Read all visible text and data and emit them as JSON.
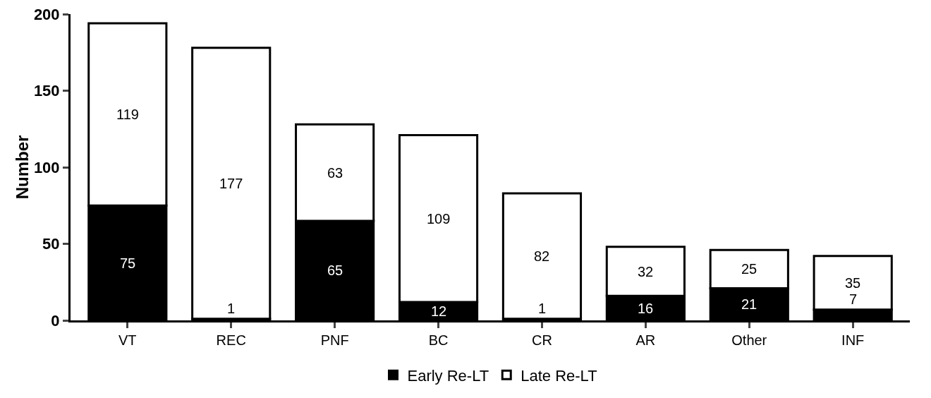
{
  "chart_data": {
    "type": "bar",
    "stacked": true,
    "ylabel": "Number",
    "categories": [
      "VT",
      "REC",
      "PNF",
      "BC",
      "CR",
      "AR",
      "Other",
      "INF"
    ],
    "series": [
      {
        "name": "Early Re-LT",
        "color": "#000000",
        "values": [
          75,
          1,
          65,
          12,
          1,
          16,
          21,
          7
        ]
      },
      {
        "name": "Late Re-LT",
        "color": "#ffffff",
        "values": [
          119,
          177,
          63,
          109,
          82,
          32,
          25,
          35
        ]
      }
    ],
    "ylim": [
      0,
      200
    ],
    "yticks": [
      0,
      50,
      100,
      150,
      200
    ],
    "grid": false,
    "legend": "bottom",
    "data_labels": true
  }
}
